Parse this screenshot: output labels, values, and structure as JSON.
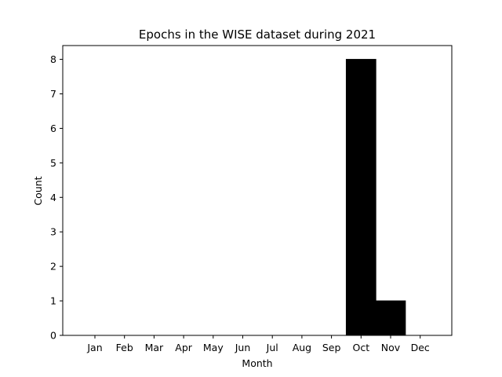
{
  "chart_data": {
    "type": "bar",
    "title": "Epochs in the WISE dataset during 2021",
    "xlabel": "Month",
    "ylabel": "Count",
    "categories": [
      "Jan",
      "Feb",
      "Mar",
      "Apr",
      "May",
      "Jun",
      "Jul",
      "Aug",
      "Sep",
      "Oct",
      "Nov",
      "Dec"
    ],
    "values": [
      0,
      0,
      0,
      0,
      0,
      0,
      0,
      0,
      0,
      8,
      1,
      0
    ],
    "ylim": [
      0,
      8.4
    ],
    "yticks": [
      "0",
      "1",
      "2",
      "3",
      "4",
      "5",
      "6",
      "7",
      "8"
    ],
    "grid": false,
    "legend": "none",
    "bar_color": "#000000"
  }
}
